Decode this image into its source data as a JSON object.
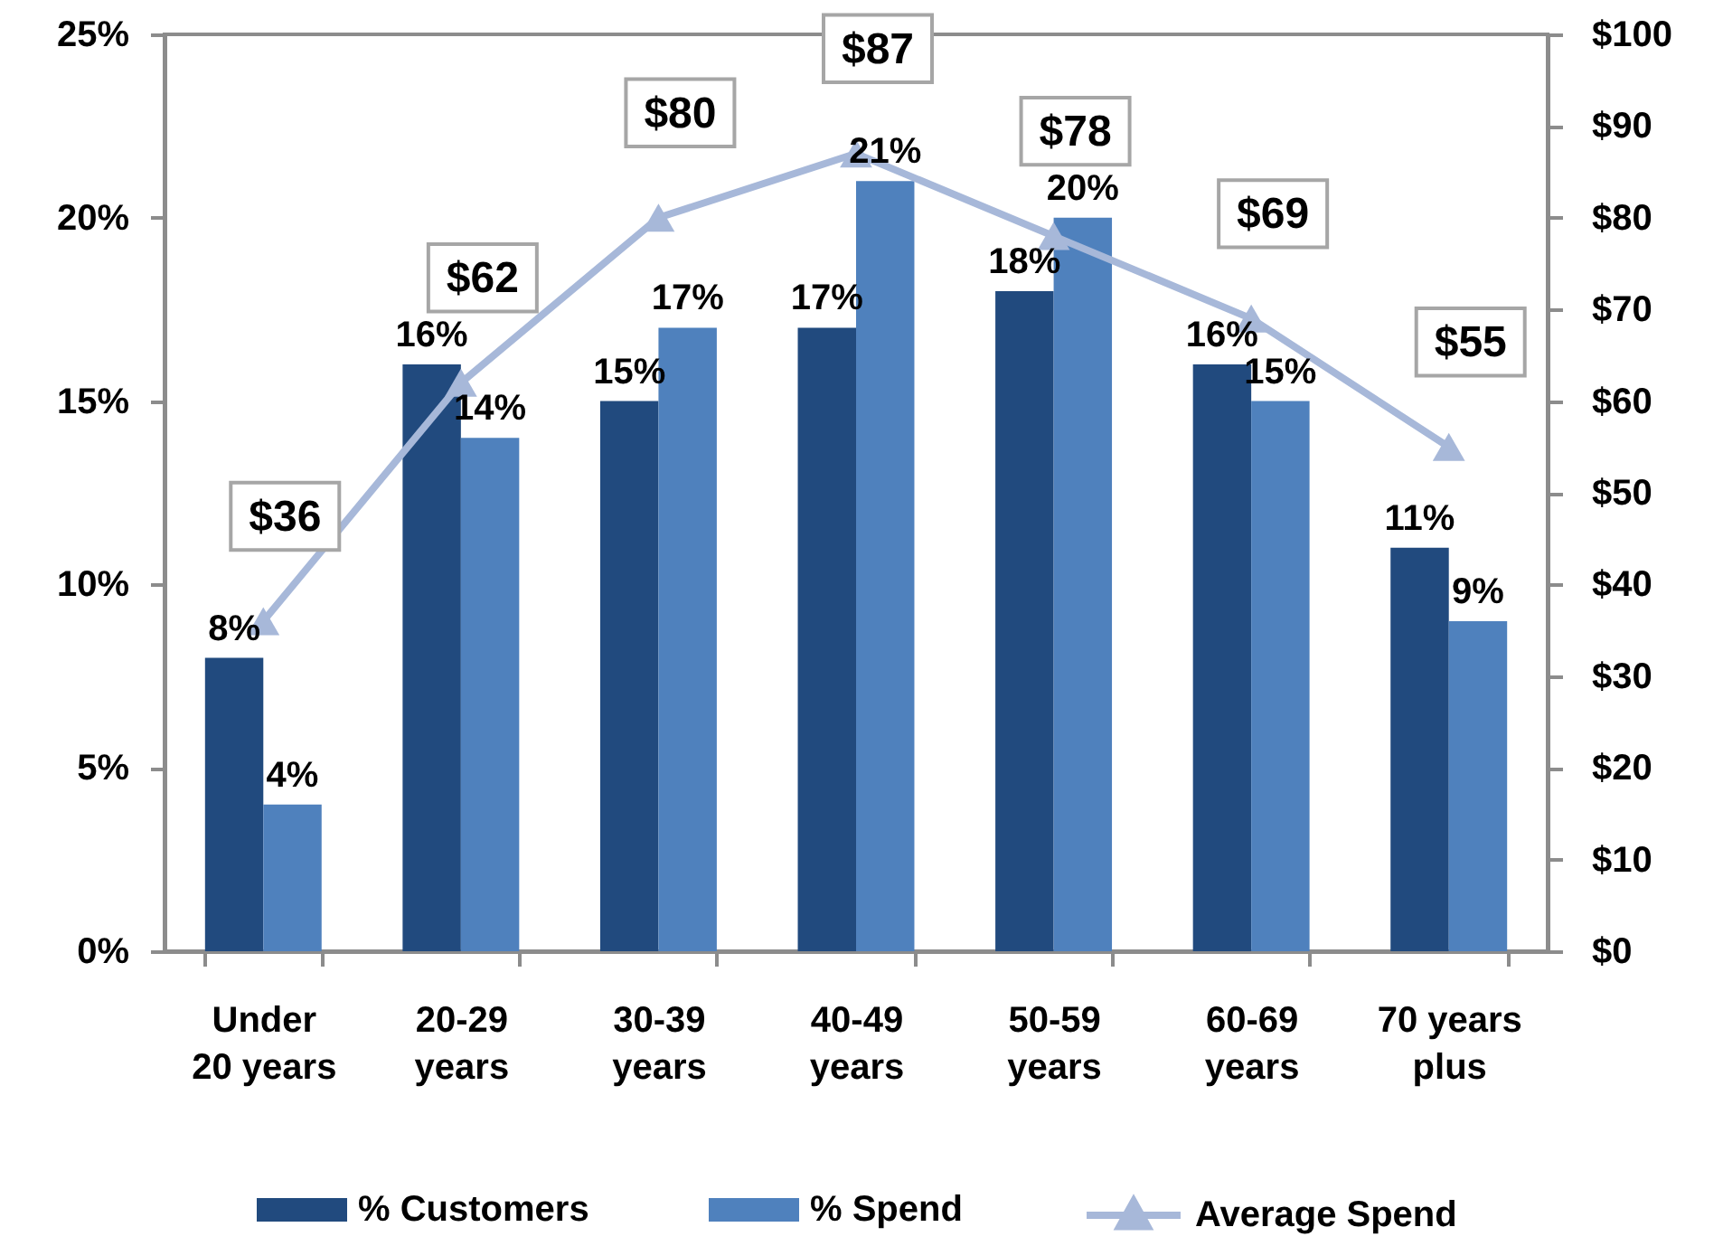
{
  "chart_data": {
    "type": "bar",
    "categories": [
      "Under\n20 years",
      "20-29\nyears",
      "30-39\nyears",
      "40-49\nyears",
      "50-59\nyears",
      "60-69\nyears",
      "70 years\nplus"
    ],
    "series": [
      {
        "name": "% Customers",
        "color": "#214a7e",
        "values": [
          8,
          16,
          15,
          17,
          18,
          16,
          11
        ],
        "value_labels": [
          "8%",
          "16%",
          "15%",
          "17%",
          "18%",
          "16%",
          "11%"
        ]
      },
      {
        "name": "% Spend",
        "color": "#4f81bd",
        "values": [
          4,
          14,
          17,
          21,
          20,
          15,
          9
        ],
        "value_labels": [
          "4%",
          "14%",
          "17%",
          "21%",
          "20%",
          "15%",
          "9%"
        ]
      },
      {
        "name": "Average Spend",
        "type": "line",
        "axis": "y2",
        "color": "#a7b8d9",
        "marker": "triangle",
        "values": [
          36,
          62,
          80,
          87,
          78,
          69,
          55
        ],
        "value_labels": [
          "$36",
          "$62",
          "$80",
          "$87",
          "$78",
          "$69",
          "$55"
        ]
      }
    ],
    "ylim": [
      0,
      25
    ],
    "yticks": [
      {
        "value": 0,
        "label": "0%"
      },
      {
        "value": 5,
        "label": "5%"
      },
      {
        "value": 10,
        "label": "10%"
      },
      {
        "value": 15,
        "label": "15%"
      },
      {
        "value": 20,
        "label": "20%"
      },
      {
        "value": 25,
        "label": "25%"
      }
    ],
    "y2lim": [
      0,
      100
    ],
    "y2ticks": [
      {
        "value": 0,
        "label": "$0"
      },
      {
        "value": 10,
        "label": "$10"
      },
      {
        "value": 20,
        "label": "$20"
      },
      {
        "value": 30,
        "label": "$30"
      },
      {
        "value": 40,
        "label": "$40"
      },
      {
        "value": 50,
        "label": "$50"
      },
      {
        "value": 60,
        "label": "$60"
      },
      {
        "value": 70,
        "label": "$70"
      },
      {
        "value": 80,
        "label": "$80"
      },
      {
        "value": 90,
        "label": "$90"
      },
      {
        "value": 100,
        "label": "$100"
      }
    ],
    "grid": false,
    "legend": "bottom"
  }
}
